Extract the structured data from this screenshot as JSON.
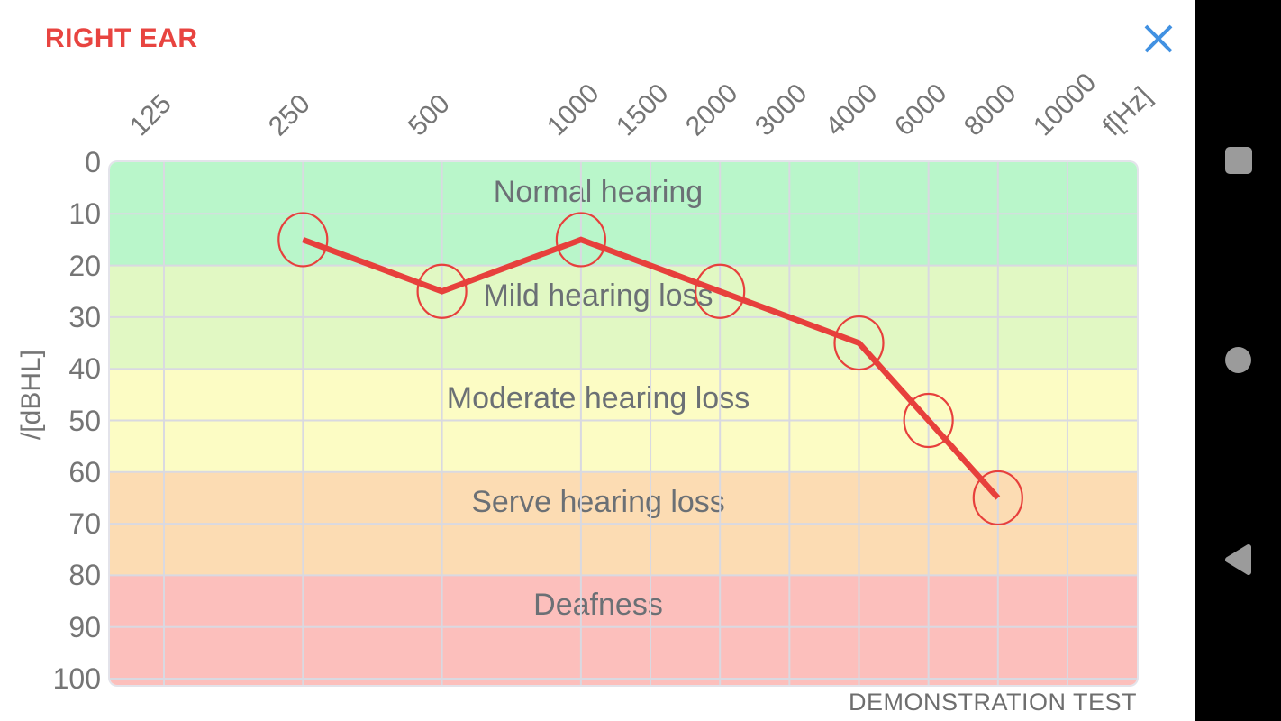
{
  "header": {
    "title": "RIGHT EAR"
  },
  "footer": {
    "note": "DEMONSTRATION TEST"
  },
  "icons": {
    "close": "close-x",
    "nav": [
      "recents-square",
      "home-circle",
      "back-triangle"
    ]
  },
  "colors": {
    "title_red": "#e84440",
    "line_red": "#e7403c",
    "close_blue": "#4191e2",
    "axis_text": "#757575",
    "band_text": "#6b7075",
    "gridline": "#d9d9e1",
    "navbar_bg": "#000000",
    "nav_icon": "#9b9b9b"
  },
  "chart_data": {
    "type": "line",
    "title": "RIGHT EAR",
    "xlabel": "f[Hz]",
    "ylabel": "/[dBHL]",
    "xticks": [
      125,
      250,
      500,
      1000,
      1500,
      2000,
      3000,
      4000,
      6000,
      8000,
      10000
    ],
    "yticks": [
      0,
      10,
      20,
      30,
      40,
      50,
      60,
      70,
      80,
      90,
      100
    ],
    "ylim": [
      0,
      100
    ],
    "y_inverted": true,
    "grid": true,
    "series": [
      {
        "name": "right-ear-threshold",
        "color": "#e7403c",
        "marker": "circle-outline",
        "points": [
          {
            "freq": 250,
            "db": 15
          },
          {
            "freq": 500,
            "db": 25
          },
          {
            "freq": 1000,
            "db": 15
          },
          {
            "freq": 2000,
            "db": 25
          },
          {
            "freq": 4000,
            "db": 35
          },
          {
            "freq": 6000,
            "db": 50
          },
          {
            "freq": 8000,
            "db": 65
          }
        ]
      }
    ],
    "bands": [
      {
        "label": "Normal hearing",
        "db_from": 0,
        "db_to": 20,
        "color": "#b9f6ca"
      },
      {
        "label": "Mild hearing loss",
        "db_from": 20,
        "db_to": 40,
        "color": "#e1f8c3"
      },
      {
        "label": "Moderate hearing loss",
        "db_from": 40,
        "db_to": 60,
        "color": "#fcfcc4"
      },
      {
        "label": "Serve hearing loss",
        "db_from": 60,
        "db_to": 80,
        "color": "#fcdcb3"
      },
      {
        "label": "Deafness",
        "db_from": 80,
        "db_to": 100,
        "color": "#fcbfbc"
      }
    ],
    "annotation": "DEMONSTRATION TEST"
  }
}
